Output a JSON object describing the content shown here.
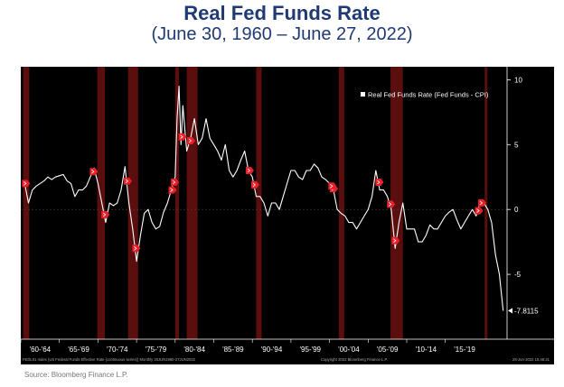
{
  "title": "Real Fed Funds Rate",
  "subtitle": "(June 30, 1960 – June 27, 2022)",
  "source": "Source: Bloomberg Finance L.P.",
  "footer": {
    "left": "FEDL01 Index (US Federal Funds Effective Rate (continuous series))  Monthly 30JUN1960-27JUN2022",
    "right": "Copyright 2022 Bloomberg Finance L.P.",
    "timestamp": "28-Jun-2022 15:46:21"
  },
  "colors": {
    "background": "#000000",
    "line": "#ffffff",
    "recession": "#5a0e0e",
    "marker": "#e8202a"
  },
  "chart_data": {
    "type": "line",
    "title": "Real Fed Funds Rate",
    "legend": [
      "Real Fed Funds Rate  (Fed Funds - CPI)"
    ],
    "legend_position": "top-right",
    "ylim": [
      -10,
      11
    ],
    "y_ticks": [
      "10",
      "5",
      "0",
      "-5"
    ],
    "x_tick_labels": [
      "'60-'64",
      "'65-'69",
      "'70-'74",
      "'75-'79",
      "'80-'84",
      "'85-'89",
      "'90-'94",
      "'95-'99",
      "'00-'04",
      "'05-'09",
      "'10-'14",
      "'15-'19"
    ],
    "last_value_label": "-7.8115",
    "series": [
      {
        "name": "Real Fed Funds Rate  (Fed Funds - CPI)",
        "x": [
          1960.5,
          1961,
          1961.5,
          1962,
          1962.5,
          1963,
          1963.5,
          1964,
          1964.5,
          1965,
          1965.5,
          1966,
          1966.5,
          1967,
          1967.5,
          1968,
          1968.5,
          1969,
          1969.5,
          1970,
          1970.5,
          1971,
          1971.5,
          1972,
          1972.5,
          1973,
          1973.5,
          1974,
          1974.5,
          1975,
          1975.5,
          1976,
          1976.5,
          1977,
          1977.5,
          1978,
          1978.5,
          1979,
          1979.5,
          1980,
          1980.25,
          1980.5,
          1980.75,
          1981,
          1981.5,
          1982,
          1982.5,
          1983,
          1983.5,
          1984,
          1984.5,
          1985,
          1985.5,
          1986,
          1986.5,
          1987,
          1987.5,
          1988,
          1988.5,
          1989,
          1989.5,
          1990,
          1990.5,
          1991,
          1991.5,
          1992,
          1992.5,
          1993,
          1993.5,
          1994,
          1994.5,
          1995,
          1995.5,
          1996,
          1996.5,
          1997,
          1997.5,
          1998,
          1998.5,
          1999,
          1999.5,
          2000,
          2000.5,
          2001,
          2001.5,
          2002,
          2002.5,
          2003,
          2003.5,
          2004,
          2004.5,
          2005,
          2005.5,
          2006,
          2006.5,
          2007,
          2007.5,
          2008,
          2008.5,
          2009,
          2009.5,
          2010,
          2010.5,
          2011,
          2011.5,
          2012,
          2012.5,
          2013,
          2013.5,
          2014,
          2014.5,
          2015,
          2015.5,
          2016,
          2016.5,
          2017,
          2017.5,
          2018,
          2018.5,
          2019,
          2019.5,
          2020,
          2020.5,
          2021,
          2021.5,
          2022,
          2022.5
        ],
        "values": [
          2.0,
          0.5,
          1.5,
          1.8,
          2.0,
          2.2,
          2.5,
          2.3,
          2.5,
          2.6,
          2.7,
          2.2,
          2.0,
          1.0,
          1.5,
          1.5,
          1.8,
          2.5,
          3.2,
          2.0,
          0.5,
          -1.0,
          0.5,
          0.3,
          0.5,
          1.5,
          3.3,
          0.5,
          -1.5,
          -4.0,
          -2.0,
          -0.3,
          0.0,
          -1.0,
          -1.5,
          -1.3,
          -0.2,
          0.5,
          1.5,
          2.5,
          7.0,
          9.5,
          5.0,
          8.0,
          4.5,
          5.5,
          7.0,
          5.0,
          5.5,
          7.0,
          5.5,
          5.0,
          4.5,
          3.8,
          5.0,
          3.0,
          2.5,
          3.0,
          3.8,
          4.5,
          3.0,
          2.5,
          1.0,
          1.0,
          0.5,
          -0.5,
          0.5,
          0.5,
          0.0,
          1.0,
          2.0,
          3.0,
          3.0,
          2.5,
          2.3,
          3.0,
          3.0,
          3.5,
          3.2,
          2.5,
          2.3,
          2.0,
          1.5,
          0.0,
          -0.3,
          -0.5,
          -1.0,
          -1.0,
          -1.5,
          -1.0,
          -0.5,
          0.0,
          1.0,
          3.0,
          1.5,
          1.5,
          1.0,
          0.0,
          -3.0,
          -1.0,
          0.5,
          -1.5,
          -1.5,
          -1.5,
          -2.5,
          -2.5,
          -2.0,
          -1.2,
          -1.5,
          -1.5,
          -1.0,
          -0.5,
          -0.2,
          0.0,
          -0.8,
          -1.5,
          -1.0,
          -0.5,
          0.0,
          -0.5,
          0.5,
          0.5,
          0.0,
          -1.0,
          -3.5,
          -5.0,
          -7.8
        ]
      }
    ],
    "recessions": [
      [
        1960.3,
        1961.1
      ],
      [
        1969.9,
        1970.9
      ],
      [
        1973.9,
        1975.2
      ],
      [
        1980.0,
        1980.5
      ],
      [
        1981.5,
        1982.9
      ],
      [
        1990.5,
        1991.2
      ],
      [
        2001.2,
        2001.9
      ],
      [
        2007.9,
        2009.5
      ],
      [
        2020.1,
        2020.4
      ]
    ],
    "tightening_markers": [
      1960.5,
      1969.3,
      1970.8,
      1973.7,
      1974.8,
      1979.8,
      1979.5,
      1980.8,
      1981.9,
      1989.5,
      1990.2,
      2000.4,
      2000.2,
      2006.3,
      2007.8,
      2008.4,
      2019.2,
      2019.6
    ]
  }
}
